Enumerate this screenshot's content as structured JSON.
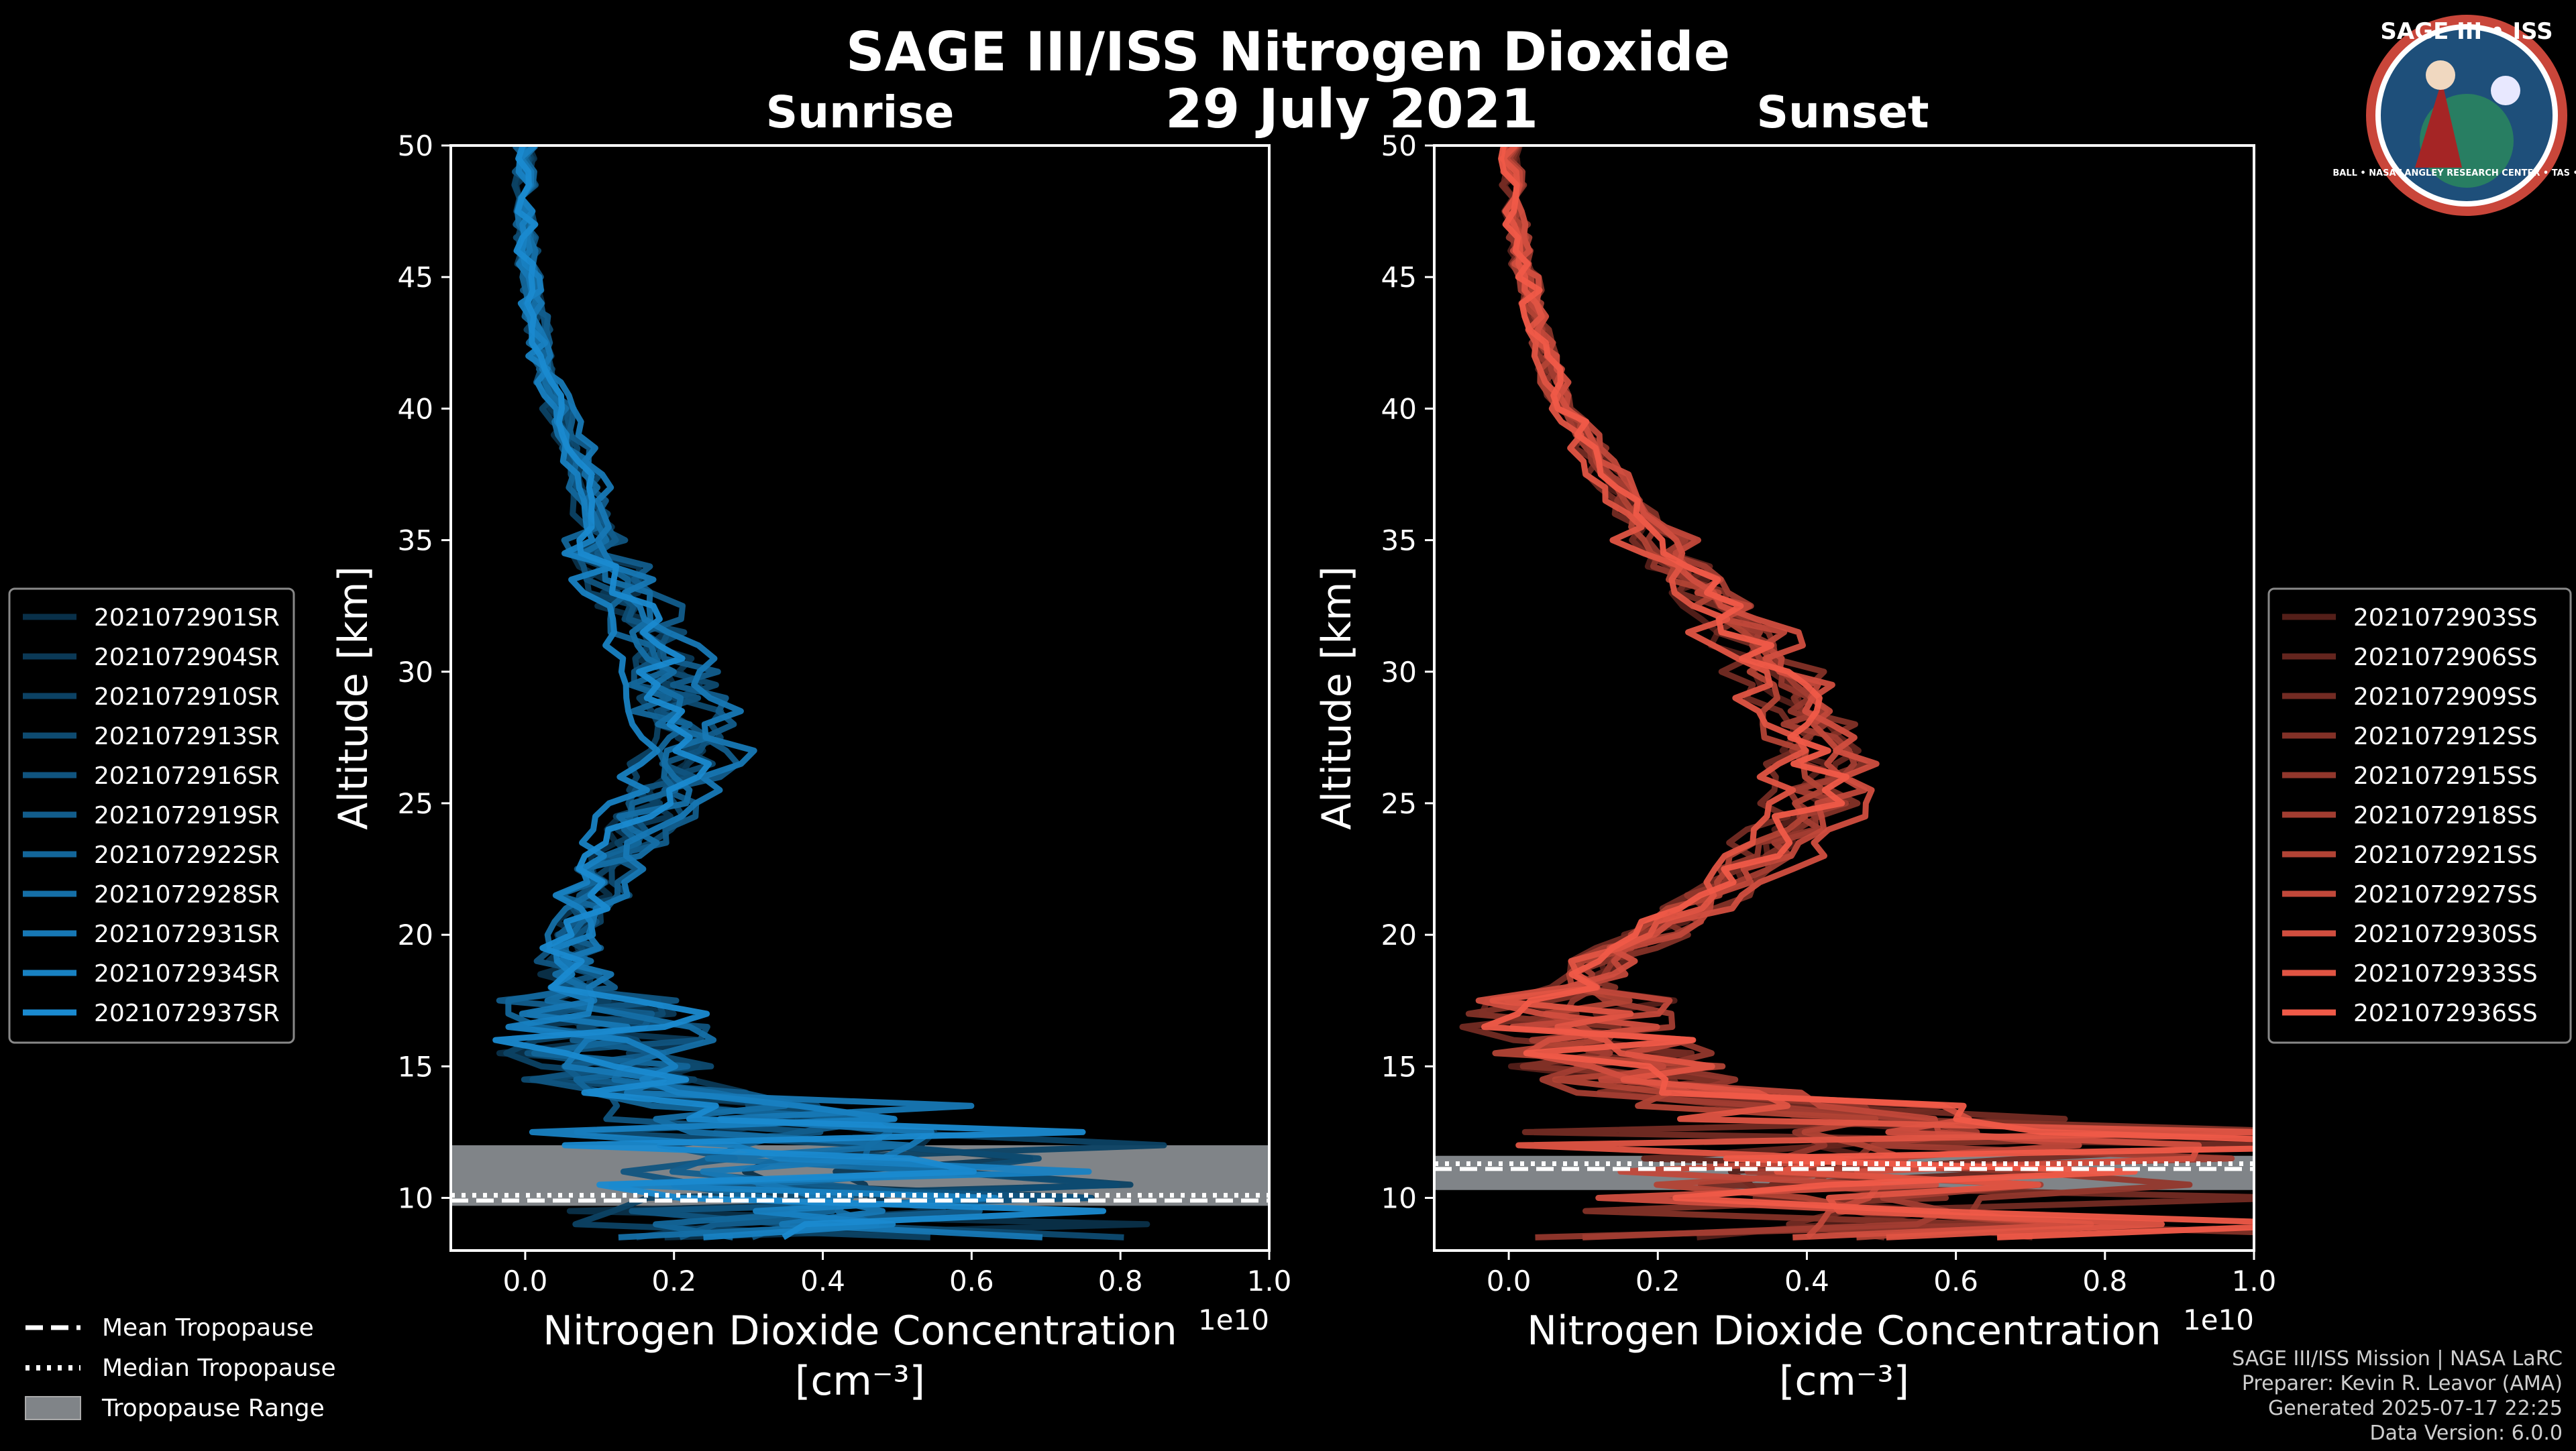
{
  "title": "SAGE III/ISS Nitrogen Dioxide",
  "date": "29 July 2021",
  "colors": {
    "sunrise": "#1a8ad0",
    "sunset": "#f05a48",
    "range": "#808488"
  },
  "logo": {
    "text": "SAGE III • ISS",
    "ring_text": "BALL • NASA LANGLEY RESEARCH CENTER • TAS • ESA"
  },
  "legend_common": [
    "Mean Tropopause",
    "Median Tropopause",
    "Tropopause Range"
  ],
  "credits": [
    "SAGE III/ISS Mission | NASA LaRC",
    "Preparer: Kevin R. Leavor (AMA)",
    "Generated 2025-07-17 22:25",
    "Data Version: 6.0.0"
  ],
  "chart_data": [
    {
      "type": "line",
      "title": "Sunrise",
      "xlabel": "Nitrogen Dioxide Concentration",
      "xlabel_units": "[cm⁻³]",
      "ylabel": "Altitude [km]",
      "xlim": [
        -0.1,
        1.0
      ],
      "ylim": [
        8,
        50
      ],
      "x_scale_label": "1e10",
      "x_ticks": [
        "0.0",
        "0.2",
        "0.4",
        "0.6",
        "0.8",
        "1.0"
      ],
      "y_ticks": [
        "10",
        "15",
        "20",
        "25",
        "30",
        "35",
        "40",
        "45",
        "50"
      ],
      "profile_altitudes": [
        50,
        47,
        44,
        41,
        38,
        35,
        32,
        29,
        27,
        25,
        23,
        21,
        19,
        17,
        15,
        13
      ],
      "profile_mean": [
        0.0,
        0.0,
        0.01,
        0.03,
        0.07,
        0.1,
        0.15,
        0.2,
        0.22,
        0.17,
        0.12,
        0.08,
        0.05,
        0.1,
        0.1,
        0.2
      ],
      "series": [
        {
          "name": "2021072901SR",
          "scale": 0.92
        },
        {
          "name": "2021072904SR",
          "scale": 1.08
        },
        {
          "name": "2021072910SR",
          "scale": 0.85
        },
        {
          "name": "2021072913SR",
          "scale": 1.15
        },
        {
          "name": "2021072916SR",
          "scale": 0.97
        },
        {
          "name": "2021072919SR",
          "scale": 1.22
        },
        {
          "name": "2021072922SR",
          "scale": 0.9
        },
        {
          "name": "2021072928SR",
          "scale": 1.04
        },
        {
          "name": "2021072931SR",
          "scale": 1.3
        },
        {
          "name": "2021072934SR",
          "scale": 0.8
        },
        {
          "name": "2021072937SR",
          "scale": 1.0
        }
      ],
      "tropopause": {
        "mean_km": 9.9,
        "median_km": 10.1,
        "range_km": [
          9.7,
          12.0
        ]
      }
    },
    {
      "type": "line",
      "title": "Sunset",
      "xlabel": "Nitrogen Dioxide Concentration",
      "xlabel_units": "[cm⁻³]",
      "ylabel": "Altitude [km]",
      "xlim": [
        -0.1,
        1.0
      ],
      "ylim": [
        8,
        50
      ],
      "x_scale_label": "1e10",
      "x_ticks": [
        "0.0",
        "0.2",
        "0.4",
        "0.6",
        "0.8",
        "1.0"
      ],
      "y_ticks": [
        "10",
        "15",
        "20",
        "25",
        "30",
        "35",
        "40",
        "45",
        "50"
      ],
      "profile_altitudes": [
        50,
        47,
        44,
        41,
        38,
        35,
        32,
        29,
        27,
        25,
        23,
        21,
        19,
        17,
        15,
        13
      ],
      "profile_mean": [
        0.0,
        0.01,
        0.03,
        0.06,
        0.12,
        0.2,
        0.3,
        0.38,
        0.42,
        0.41,
        0.35,
        0.25,
        0.12,
        0.08,
        0.15,
        0.3
      ],
      "series": [
        {
          "name": "2021072903SS",
          "scale": 0.95
        },
        {
          "name": "2021072906SS",
          "scale": 1.05
        },
        {
          "name": "2021072909SS",
          "scale": 0.9
        },
        {
          "name": "2021072912SS",
          "scale": 1.1
        },
        {
          "name": "2021072915SS",
          "scale": 0.98
        },
        {
          "name": "2021072918SS",
          "scale": 1.02
        },
        {
          "name": "2021072921SS",
          "scale": 0.93
        },
        {
          "name": "2021072927SS",
          "scale": 1.08
        },
        {
          "name": "2021072930SS",
          "scale": 1.12
        },
        {
          "name": "2021072933SS",
          "scale": 0.88
        },
        {
          "name": "2021072936SS",
          "scale": 1.0
        }
      ],
      "tropopause": {
        "mean_km": 11.1,
        "median_km": 11.3,
        "range_km": [
          10.3,
          11.6
        ]
      }
    }
  ]
}
